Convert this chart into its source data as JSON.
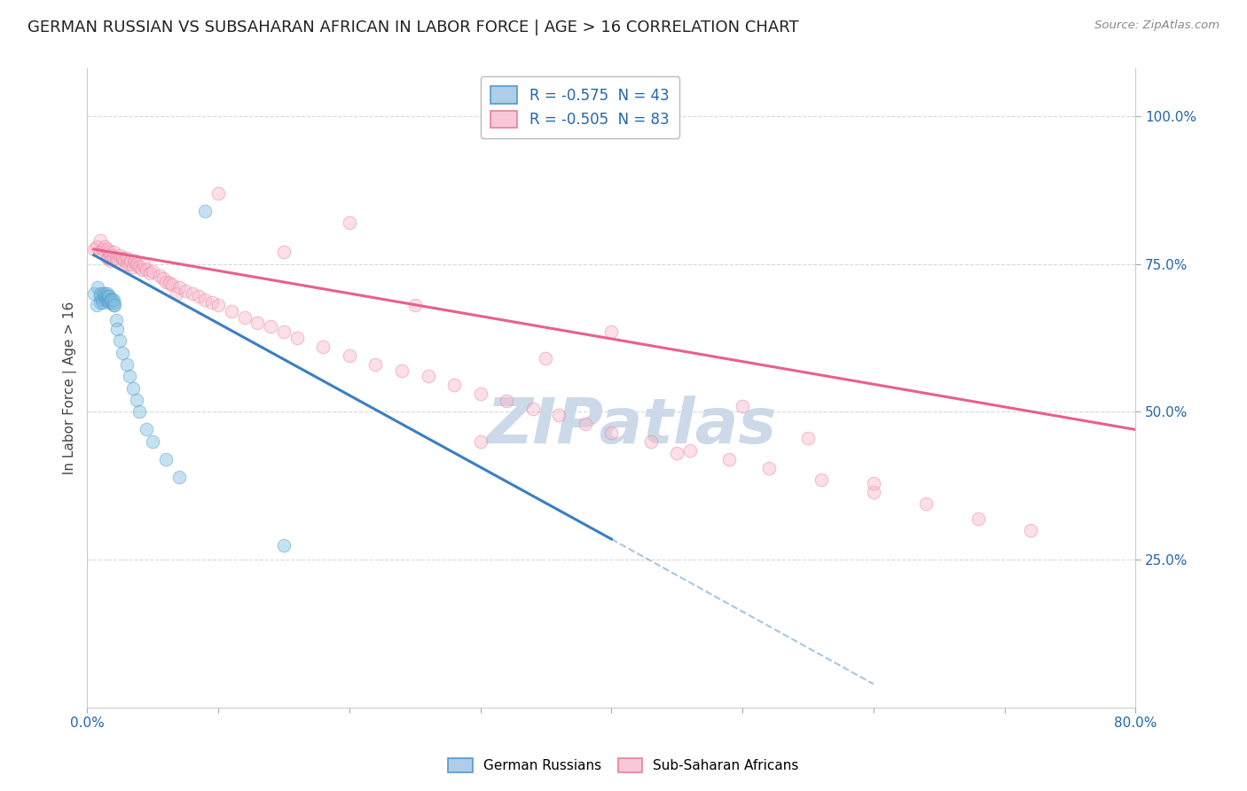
{
  "title": "GERMAN RUSSIAN VS SUBSAHARAN AFRICAN IN LABOR FORCE | AGE > 16 CORRELATION CHART",
  "source_text": "Source: ZipAtlas.com",
  "ylabel": "In Labor Force | Age > 16",
  "xlim": [
    0.0,
    0.8
  ],
  "ylim": [
    0.0,
    1.08
  ],
  "ytick_positions": [
    0.25,
    0.5,
    0.75,
    1.0
  ],
  "yticklabels": [
    "25.0%",
    "50.0%",
    "75.0%",
    "100.0%"
  ],
  "legend_entries": [
    {
      "label": "R = -0.575  N = 43",
      "color": "#6baed6"
    },
    {
      "label": "R = -0.505  N = 83",
      "color": "#fb6a9a"
    }
  ],
  "series1_label": "German Russians",
  "series1_color": "#7fbfdf",
  "series1_edgecolor": "#5599cc",
  "series1_x": [
    0.005,
    0.007,
    0.008,
    0.01,
    0.01,
    0.01,
    0.011,
    0.012,
    0.012,
    0.013,
    0.013,
    0.014,
    0.014,
    0.015,
    0.015,
    0.015,
    0.016,
    0.016,
    0.017,
    0.017,
    0.018,
    0.018,
    0.018,
    0.019,
    0.02,
    0.02,
    0.02,
    0.021,
    0.022,
    0.023,
    0.025,
    0.027,
    0.03,
    0.032,
    0.035,
    0.038,
    0.04,
    0.045,
    0.05,
    0.06,
    0.07,
    0.09,
    0.15
  ],
  "series1_y": [
    0.7,
    0.68,
    0.71,
    0.685,
    0.695,
    0.7,
    0.69,
    0.685,
    0.7,
    0.695,
    0.7,
    0.69,
    0.695,
    0.695,
    0.69,
    0.7,
    0.69,
    0.695,
    0.685,
    0.695,
    0.69,
    0.685,
    0.69,
    0.69,
    0.68,
    0.685,
    0.69,
    0.68,
    0.655,
    0.64,
    0.62,
    0.6,
    0.58,
    0.56,
    0.54,
    0.52,
    0.5,
    0.47,
    0.45,
    0.42,
    0.39,
    0.84,
    0.275
  ],
  "series2_label": "Sub-Saharan Africans",
  "series2_color": "#f9b8cc",
  "series2_edgecolor": "#e8809a",
  "series2_x": [
    0.005,
    0.007,
    0.01,
    0.01,
    0.012,
    0.013,
    0.015,
    0.015,
    0.016,
    0.017,
    0.018,
    0.018,
    0.02,
    0.02,
    0.022,
    0.023,
    0.025,
    0.027,
    0.028,
    0.03,
    0.03,
    0.032,
    0.033,
    0.035,
    0.036,
    0.038,
    0.04,
    0.042,
    0.043,
    0.045,
    0.048,
    0.05,
    0.055,
    0.058,
    0.06,
    0.063,
    0.065,
    0.068,
    0.07,
    0.075,
    0.08,
    0.085,
    0.09,
    0.095,
    0.1,
    0.11,
    0.12,
    0.13,
    0.14,
    0.15,
    0.16,
    0.18,
    0.2,
    0.22,
    0.24,
    0.26,
    0.28,
    0.3,
    0.32,
    0.34,
    0.36,
    0.38,
    0.4,
    0.43,
    0.46,
    0.49,
    0.52,
    0.56,
    0.6,
    0.64,
    0.68,
    0.72,
    0.1,
    0.2,
    0.3,
    0.4,
    0.5,
    0.6,
    0.15,
    0.25,
    0.35,
    0.45,
    0.55
  ],
  "series2_y": [
    0.775,
    0.78,
    0.79,
    0.77,
    0.775,
    0.78,
    0.76,
    0.775,
    0.76,
    0.77,
    0.765,
    0.755,
    0.76,
    0.77,
    0.76,
    0.755,
    0.765,
    0.76,
    0.755,
    0.75,
    0.76,
    0.75,
    0.755,
    0.745,
    0.755,
    0.75,
    0.745,
    0.74,
    0.75,
    0.74,
    0.735,
    0.738,
    0.73,
    0.725,
    0.72,
    0.718,
    0.715,
    0.7,
    0.71,
    0.705,
    0.7,
    0.695,
    0.69,
    0.685,
    0.68,
    0.67,
    0.66,
    0.65,
    0.645,
    0.635,
    0.625,
    0.61,
    0.595,
    0.58,
    0.57,
    0.56,
    0.545,
    0.53,
    0.518,
    0.505,
    0.495,
    0.48,
    0.465,
    0.45,
    0.435,
    0.42,
    0.405,
    0.385,
    0.365,
    0.345,
    0.32,
    0.3,
    0.87,
    0.82,
    0.45,
    0.635,
    0.51,
    0.38,
    0.77,
    0.68,
    0.59,
    0.43,
    0.455
  ],
  "reg_line1_x": [
    0.005,
    0.4
  ],
  "reg_line1_y": [
    0.765,
    0.285
  ],
  "reg_line1_color": "#3a7fc1",
  "reg_line2_x": [
    0.005,
    0.8
  ],
  "reg_line2_y": [
    0.775,
    0.47
  ],
  "reg_line2_color": "#e8608a",
  "dashed_line_x": [
    0.4,
    0.6
  ],
  "dashed_line_y": [
    0.285,
    0.04
  ],
  "dashed_color": "#8ab4d8",
  "watermark": "ZIPatlas",
  "watermark_color": "#ccd9e8",
  "background_color": "#ffffff",
  "grid_color": "#d8d8d8",
  "title_fontsize": 13,
  "axis_fontsize": 11,
  "tick_fontsize": 11,
  "scatter_size": 110,
  "scatter_alpha": 0.45
}
